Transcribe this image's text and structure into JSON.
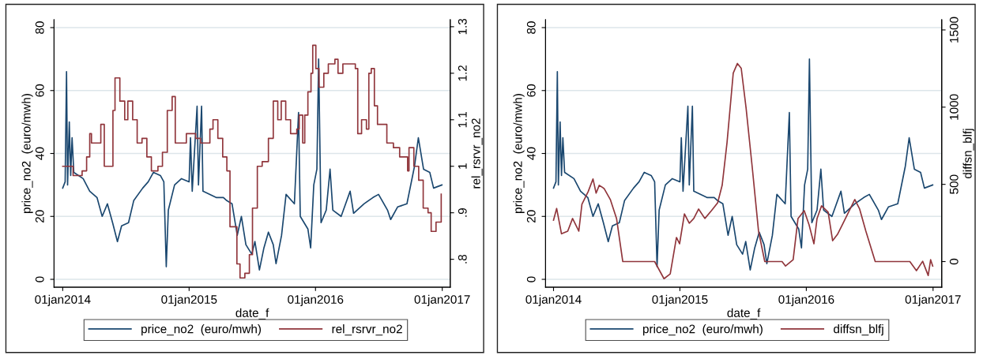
{
  "chart_data": [
    {
      "type": "line",
      "xlabel": "date_f",
      "ylabel": "price_no2  (euro/mwh)",
      "y2label": "rel_rsrvr_no2",
      "xlim": [
        "2013-12-07",
        "2017-01-24"
      ],
      "xticks": [
        {
          "value": "2014-01-01",
          "label": "01jan2014"
        },
        {
          "value": "2015-01-01",
          "label": "01jan2015"
        },
        {
          "value": "2016-01-01",
          "label": "01jan2016"
        },
        {
          "value": "2017-01-01",
          "label": "01jan2017"
        }
      ],
      "ylim": [
        -2.5,
        82.5
      ],
      "yticks": [
        0,
        20,
        40,
        60,
        80
      ],
      "y2lim": [
        0.74,
        1.315
      ],
      "y2ticks": [
        {
          "value": 0.8,
          "label": ".8"
        },
        {
          "value": 0.9,
          "label": ".9"
        },
        1,
        1.1,
        1.2,
        1.3
      ],
      "grid": "y",
      "legend": "bottom",
      "series": [
        {
          "name": "price_no2  (euro/mwh)",
          "color": "#1a476f",
          "x": [
            "2014-01-01",
            "2014-01-08",
            "2014-01-12",
            "2014-01-15",
            "2014-01-20",
            "2014-01-24",
            "2014-01-28",
            "2014-02-02",
            "2014-03-01",
            "2014-03-20",
            "2014-04-10",
            "2014-04-25",
            "2014-05-10",
            "2014-05-25",
            "2014-06-08",
            "2014-06-20",
            "2014-07-10",
            "2014-07-25",
            "2014-08-20",
            "2014-09-05",
            "2014-09-20",
            "2014-10-10",
            "2014-10-20",
            "2014-10-27",
            "2014-11-02",
            "2014-11-20",
            "2014-12-10",
            "2015-01-01",
            "2015-01-05",
            "2015-01-10",
            "2015-01-24",
            "2015-01-28",
            "2015-02-06",
            "2015-02-10",
            "2015-03-20",
            "2015-04-10",
            "2015-04-20",
            "2015-05-05",
            "2015-05-20",
            "2015-06-01",
            "2015-06-14",
            "2015-07-01",
            "2015-07-10",
            "2015-07-23",
            "2015-08-05",
            "2015-08-18",
            "2015-09-01",
            "2015-09-09",
            "2015-09-25",
            "2015-10-08",
            "2015-11-01",
            "2015-11-13",
            "2015-11-18",
            "2015-12-10",
            "2015-12-18",
            "2015-12-27",
            "2016-01-05",
            "2016-01-10",
            "2016-01-17",
            "2016-02-01",
            "2016-02-12",
            "2016-02-20",
            "2016-03-15",
            "2016-04-10",
            "2016-04-20",
            "2016-05-20",
            "2016-06-15",
            "2016-07-01",
            "2016-07-27",
            "2016-08-05",
            "2016-08-25",
            "2016-09-21",
            "2016-10-13",
            "2016-10-24",
            "2016-11-08",
            "2016-11-26",
            "2016-12-07",
            "2016-12-31"
          ],
          "values": [
            29,
            31,
            66,
            30,
            50,
            33,
            45,
            34,
            32,
            28,
            26,
            20,
            24,
            18,
            12,
            17,
            18,
            25,
            29,
            31,
            34,
            33,
            31,
            4,
            22,
            30,
            32,
            31,
            45,
            28,
            55,
            30,
            55,
            28,
            26,
            26,
            25,
            24,
            14,
            20,
            11,
            8,
            12,
            3,
            10,
            15,
            11,
            5,
            14,
            27,
            24,
            53,
            20,
            16,
            10,
            30,
            35,
            70,
            18,
            22,
            35,
            22,
            20,
            28,
            21,
            24,
            26,
            27,
            22,
            19,
            23,
            24,
            36,
            45,
            35,
            34,
            29,
            30
          ]
        },
        {
          "name": "rel_rsrvr_no2",
          "color": "#90353b",
          "type": "step",
          "axis": "y2",
          "x": [
            "2014-01-01",
            "2014-01-31",
            "2014-02-26",
            "2014-03-11",
            "2014-03-20",
            "2014-03-25",
            "2014-04-21",
            "2014-05-01",
            "2014-05-26",
            "2014-06-01",
            "2014-06-15",
            "2014-06-29",
            "2014-07-08",
            "2014-07-22",
            "2014-08-04",
            "2014-08-18",
            "2014-09-01",
            "2014-09-14",
            "2014-10-03",
            "2014-10-16",
            "2014-10-30",
            "2014-11-13",
            "2014-11-22",
            "2014-12-24",
            "2015-01-20",
            "2015-02-03",
            "2015-03-02",
            "2015-03-11",
            "2015-03-25",
            "2015-04-08",
            "2015-04-20",
            "2015-04-29",
            "2015-05-19",
            "2015-05-28",
            "2015-06-11",
            "2015-06-24",
            "2015-07-03",
            "2015-07-17",
            "2015-07-31",
            "2015-08-18",
            "2015-09-01",
            "2015-09-14",
            "2015-09-24",
            "2015-10-07",
            "2015-10-21",
            "2015-11-08",
            "2015-11-15",
            "2015-11-25",
            "2015-12-01",
            "2015-12-10",
            "2015-12-19",
            "2015-12-24",
            "2016-01-02",
            "2016-01-11",
            "2016-01-25",
            "2016-02-07",
            "2016-02-26",
            "2016-03-06",
            "2016-03-20",
            "2016-04-25",
            "2016-05-02",
            "2016-05-13",
            "2016-05-27",
            "2016-06-03",
            "2016-06-10",
            "2016-06-19",
            "2016-06-28",
            "2016-07-25",
            "2016-08-13",
            "2016-08-31",
            "2016-09-23",
            "2016-09-27",
            "2016-10-11",
            "2016-10-25",
            "2016-11-07",
            "2016-11-21",
            "2016-11-30",
            "2016-12-14",
            "2016-12-29"
          ],
          "values": [
            1.0,
            0.98,
            0.99,
            1.02,
            1.07,
            1.05,
            1.09,
            1.0,
            1.12,
            1.19,
            1.14,
            1.1,
            1.14,
            1.1,
            1.05,
            1.06,
            1.02,
            0.99,
            1.0,
            1.03,
            1.12,
            1.15,
            1.05,
            1.07,
            1.06,
            1.05,
            1.08,
            1.1,
            1.06,
            1.02,
            0.99,
            0.87,
            0.79,
            0.76,
            0.77,
            0.81,
            0.91,
            1.0,
            1.01,
            1.06,
            1.14,
            1.1,
            1.14,
            1.1,
            1.07,
            1.08,
            1.11,
            1.05,
            1.11,
            1.16,
            1.2,
            1.26,
            1.21,
            1.17,
            1.2,
            1.22,
            1.23,
            1.2,
            1.22,
            1.21,
            1.07,
            1.1,
            1.08,
            1.2,
            1.21,
            1.13,
            1.09,
            1.05,
            1.04,
            1.02,
            0.99,
            1.04,
            1.0,
            0.97,
            0.91,
            0.9,
            0.86,
            0.88,
            0.94
          ]
        }
      ]
    },
    {
      "type": "line",
      "xlabel": "date_f",
      "ylabel": "price_no2  (euro/mwh)",
      "y2label": "diffsn_blfj",
      "xlim": [
        "2013-12-09",
        "2017-01-26"
      ],
      "xticks": [
        {
          "value": "2014-01-01",
          "label": "01jan2014"
        },
        {
          "value": "2015-01-01",
          "label": "01jan2015"
        },
        {
          "value": "2016-01-01",
          "label": "01jan2016"
        },
        {
          "value": "2017-01-01",
          "label": "01jan2017"
        }
      ],
      "ylim": [
        -2.5,
        82.5
      ],
      "yticks": [
        0,
        20,
        40,
        60,
        80
      ],
      "y2lim": [
        -166,
        1566
      ],
      "y2ticks": [
        0,
        500,
        1000,
        1500
      ],
      "grid": "y",
      "legend": "bottom",
      "series": [
        {
          "name": "price_no2  (euro/mwh)",
          "color": "#1a476f",
          "x": [
            "2014-01-01",
            "2014-01-08",
            "2014-01-12",
            "2014-01-15",
            "2014-01-20",
            "2014-01-24",
            "2014-01-28",
            "2014-02-02",
            "2014-03-01",
            "2014-03-20",
            "2014-04-10",
            "2014-04-25",
            "2014-05-10",
            "2014-05-25",
            "2014-06-08",
            "2014-06-20",
            "2014-07-10",
            "2014-07-25",
            "2014-08-20",
            "2014-09-05",
            "2014-09-20",
            "2014-10-10",
            "2014-10-20",
            "2014-10-27",
            "2014-11-02",
            "2014-11-20",
            "2014-12-10",
            "2015-01-01",
            "2015-01-05",
            "2015-01-10",
            "2015-01-24",
            "2015-01-28",
            "2015-02-06",
            "2015-02-10",
            "2015-03-20",
            "2015-04-10",
            "2015-04-20",
            "2015-05-05",
            "2015-05-20",
            "2015-06-01",
            "2015-06-14",
            "2015-07-01",
            "2015-07-10",
            "2015-07-23",
            "2015-08-05",
            "2015-08-18",
            "2015-09-01",
            "2015-09-09",
            "2015-09-25",
            "2015-10-08",
            "2015-11-01",
            "2015-11-13",
            "2015-11-18",
            "2015-12-10",
            "2015-12-18",
            "2015-12-27",
            "2016-01-05",
            "2016-01-10",
            "2016-01-17",
            "2016-02-01",
            "2016-02-12",
            "2016-02-20",
            "2016-03-15",
            "2016-04-10",
            "2016-04-20",
            "2016-05-20",
            "2016-06-15",
            "2016-07-01",
            "2016-07-27",
            "2016-08-05",
            "2016-08-25",
            "2016-09-21",
            "2016-10-13",
            "2016-10-24",
            "2016-11-08",
            "2016-11-26",
            "2016-12-07",
            "2016-12-31"
          ],
          "values": [
            29,
            31,
            66,
            30,
            50,
            33,
            45,
            34,
            32,
            28,
            26,
            20,
            24,
            18,
            12,
            17,
            18,
            25,
            29,
            31,
            34,
            33,
            31,
            4,
            22,
            30,
            32,
            31,
            45,
            28,
            55,
            30,
            55,
            28,
            26,
            26,
            25,
            24,
            14,
            20,
            11,
            8,
            12,
            3,
            10,
            15,
            11,
            5,
            14,
            27,
            24,
            53,
            20,
            16,
            10,
            30,
            35,
            70,
            18,
            22,
            35,
            22,
            20,
            28,
            21,
            24,
            26,
            27,
            22,
            19,
            23,
            24,
            36,
            45,
            35,
            34,
            29,
            30
          ]
        },
        {
          "name": "diffsn_blfj",
          "color": "#90353b",
          "axis": "y2",
          "x": [
            "2014-01-01",
            "2014-01-10",
            "2014-01-24",
            "2014-02-11",
            "2014-02-25",
            "2014-03-15",
            "2014-03-24",
            "2014-04-11",
            "2014-04-25",
            "2014-05-04",
            "2014-05-13",
            "2014-05-27",
            "2014-06-14",
            "2014-07-02",
            "2014-07-20",
            "2014-10-20",
            "2014-11-16",
            "2014-12-04",
            "2014-12-22",
            "2014-12-31",
            "2015-01-14",
            "2015-01-28",
            "2015-02-10",
            "2015-02-24",
            "2015-03-14",
            "2015-04-02",
            "2015-04-20",
            "2015-05-03",
            "2015-05-17",
            "2015-06-04",
            "2015-06-16",
            "2015-06-27",
            "2015-07-11",
            "2015-07-29",
            "2015-08-16",
            "2015-09-03",
            "2015-10-23",
            "2015-11-02",
            "2015-11-24",
            "2015-12-08",
            "2015-12-26",
            "2016-01-09",
            "2016-01-23",
            "2016-02-01",
            "2016-02-14",
            "2016-03-04",
            "2016-03-17",
            "2016-03-31",
            "2016-04-14",
            "2016-05-02",
            "2016-05-20",
            "2016-06-03",
            "2016-06-21",
            "2016-07-18",
            "2016-10-26",
            "2016-11-14",
            "2016-12-02",
            "2016-12-18",
            "2016-12-25",
            "2016-12-31"
          ],
          "values": [
            268,
            344,
            180,
            197,
            279,
            197,
            371,
            453,
            535,
            443,
            494,
            473,
            402,
            279,
            0,
            0,
            -111,
            -80,
            156,
            115,
            309,
            248,
            279,
            340,
            279,
            330,
            381,
            494,
            770,
            1221,
            1283,
            1252,
            996,
            607,
            197,
            0,
            0,
            -29,
            12,
            279,
            330,
            238,
            115,
            279,
            361,
            320,
            135,
            176,
            238,
            320,
            402,
            340,
            197,
            0,
            0,
            -59,
            2,
            -90,
            12,
            -29
          ]
        }
      ]
    }
  ]
}
